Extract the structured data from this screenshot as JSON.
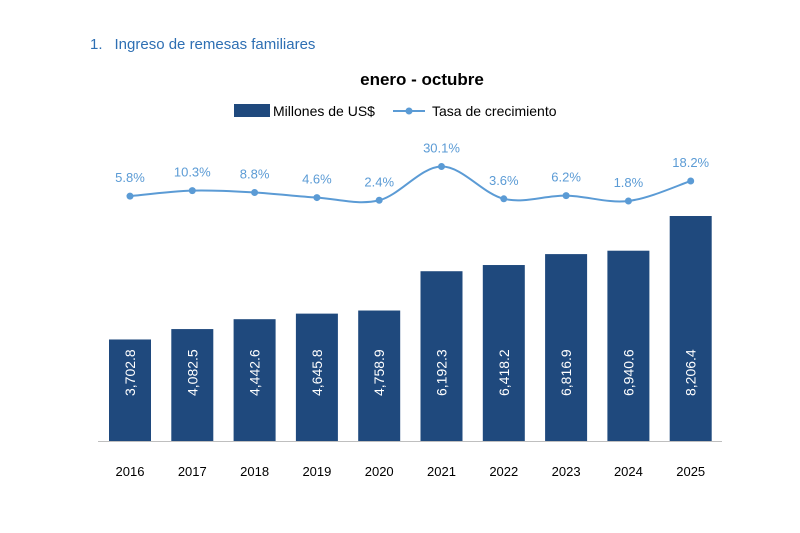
{
  "section": {
    "number": "1.",
    "title": "Ingreso de remesas familiares"
  },
  "chart_data": {
    "type": "bar+line",
    "title": "enero - octubre",
    "categories": [
      "2016",
      "2017",
      "2018",
      "2019",
      "2020",
      "2021",
      "2022",
      "2023",
      "2024",
      "2025"
    ],
    "series": [
      {
        "name": "Millones de US$",
        "type": "bar",
        "color": "#1f497d",
        "values": [
          3702.8,
          4082.5,
          4442.6,
          4645.8,
          4758.9,
          6192.3,
          6418.2,
          6816.9,
          6940.6,
          8206.4
        ],
        "labels": [
          "3,702.8",
          "4,082.5",
          "4,442.6",
          "4,645.8",
          "4,758.9",
          "6,192.3",
          "6,418.2",
          "6,816.9",
          "6,940.6",
          "8,206.4"
        ]
      },
      {
        "name": "Tasa de crecimiento",
        "type": "line",
        "color": "#5b9bd5",
        "values": [
          5.8,
          10.3,
          8.8,
          4.6,
          2.4,
          30.1,
          3.6,
          6.2,
          1.8,
          18.2
        ],
        "labels": [
          "5.8%",
          "10.3%",
          "8.8%",
          "4.6%",
          "2.4%",
          "30.1%",
          "3.6%",
          "6.2%",
          "1.8%",
          "18.2%"
        ]
      }
    ],
    "legend_position": "top-center",
    "grid": false
  }
}
